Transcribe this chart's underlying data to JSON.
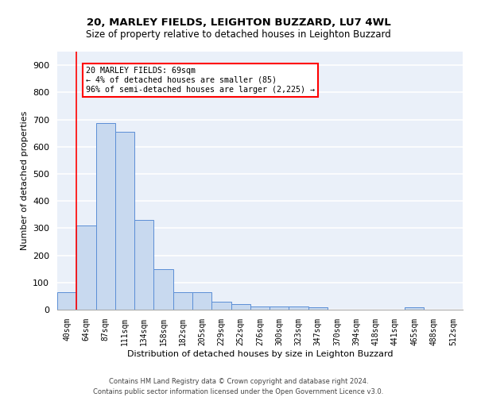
{
  "title1": "20, MARLEY FIELDS, LEIGHTON BUZZARD, LU7 4WL",
  "title2": "Size of property relative to detached houses in Leighton Buzzard",
  "xlabel": "Distribution of detached houses by size in Leighton Buzzard",
  "ylabel": "Number of detached properties",
  "bar_values": [
    63,
    310,
    688,
    655,
    330,
    150,
    65,
    65,
    30,
    20,
    12,
    12,
    12,
    9,
    0,
    0,
    0,
    0,
    8,
    0,
    0
  ],
  "bin_labels": [
    "40sqm",
    "64sqm",
    "87sqm",
    "111sqm",
    "134sqm",
    "158sqm",
    "182sqm",
    "205sqm",
    "229sqm",
    "252sqm",
    "276sqm",
    "300sqm",
    "323sqm",
    "347sqm",
    "370sqm",
    "394sqm",
    "418sqm",
    "441sqm",
    "465sqm",
    "488sqm",
    "512sqm"
  ],
  "bar_color": "#c8d9ef",
  "bar_edge_color": "#5b8ed6",
  "bg_color": "#eaf0f9",
  "grid_color": "#ffffff",
  "annotation_line1": "20 MARLEY FIELDS: 69sqm",
  "annotation_line2": "← 4% of detached houses are smaller (85)",
  "annotation_line3": "96% of semi-detached houses are larger (2,225) →",
  "annotation_box_color": "white",
  "annotation_box_edge": "red",
  "vline_x_index": 1,
  "ylim": [
    0,
    950
  ],
  "yticks": [
    0,
    100,
    200,
    300,
    400,
    500,
    600,
    700,
    800,
    900
  ],
  "footer1": "Contains HM Land Registry data © Crown copyright and database right 2024.",
  "footer2": "Contains public sector information licensed under the Open Government Licence v3.0."
}
